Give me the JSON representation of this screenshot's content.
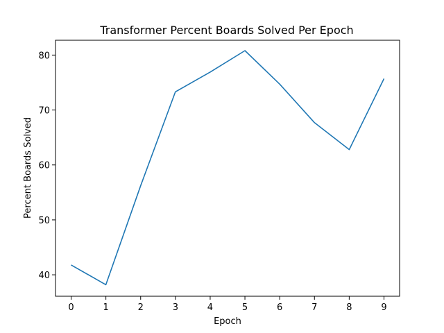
{
  "chart_data": {
    "type": "line",
    "title": "Transformer Percent Boards Solved Per Epoch",
    "xlabel": "Epoch",
    "ylabel": "Percent Boards Solved",
    "x": [
      0,
      1,
      2,
      3,
      4,
      5,
      6,
      7,
      8,
      9
    ],
    "xticks": [
      "0",
      "1",
      "2",
      "3",
      "4",
      "5",
      "6",
      "7",
      "8",
      "9"
    ],
    "yticks": [
      "40",
      "50",
      "60",
      "70",
      "80"
    ],
    "xlim": [
      -0.45,
      9.45
    ],
    "ylim": [
      36.1,
      82.7
    ],
    "series": [
      {
        "color": "#1f77b4",
        "values": [
          41.8,
          38.2,
          56.2,
          73.3,
          76.9,
          80.8,
          74.7,
          67.7,
          62.8,
          75.7
        ]
      }
    ],
    "grid": false,
    "legend": "none"
  }
}
